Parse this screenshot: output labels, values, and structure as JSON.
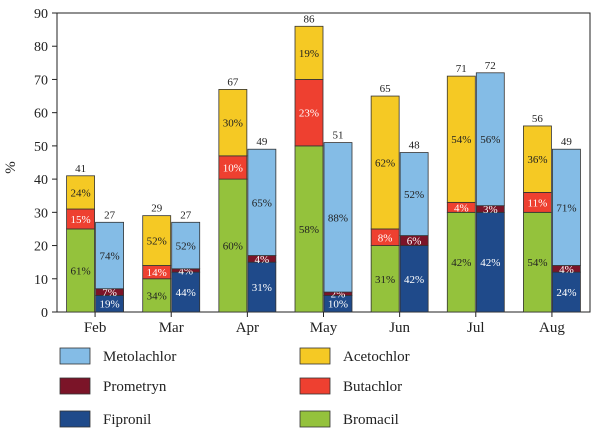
{
  "chart_data": {
    "type": "bar",
    "ylabel": "%",
    "ylim": [
      0,
      90
    ],
    "yticks": [
      0,
      10,
      20,
      30,
      40,
      50,
      60,
      70,
      80,
      90
    ],
    "categories": [
      "Feb",
      "Mar",
      "Apr",
      "May",
      "Jun",
      "Jul",
      "Aug"
    ],
    "stacks": [
      {
        "bar": "left",
        "series": [
          {
            "name": "Bromacil",
            "color": "#94c23c",
            "values": [
              25,
              10,
              40,
              50,
              20,
              30,
              30
            ],
            "labels": [
              "61%",
              "34%",
              "60%",
              "58%",
              "31%",
              "42%",
              "54%"
            ]
          },
          {
            "name": "Butachlor",
            "color": "#ee4030",
            "values": [
              6,
              4,
              7,
              20,
              5,
              3,
              6
            ],
            "labels": [
              "15%",
              "14%",
              "10%",
              "23%",
              "8%",
              "4%",
              "11%"
            ]
          },
          {
            "name": "Acetochlor",
            "color": "#f5c924",
            "values": [
              10,
              15,
              20,
              16,
              40,
              38,
              20
            ],
            "labels": [
              "24%",
              "52%",
              "30%",
              "19%",
              "62%",
              "54%",
              "36%"
            ]
          }
        ],
        "totals": [
          41,
          29,
          67,
          86,
          65,
          71,
          56
        ]
      },
      {
        "bar": "right",
        "series": [
          {
            "name": "Fipronil",
            "color": "#1f4a8a",
            "values": [
              5,
              12,
              15,
              5,
              20,
              30,
              12
            ],
            "labels": [
              "19%",
              "44%",
              "31%",
              "10%",
              "42%",
              "42%",
              "24%"
            ]
          },
          {
            "name": "Prometryn",
            "color": "#7b1428",
            "values": [
              2,
              1,
              2,
              1,
              3,
              2,
              2
            ],
            "labels": [
              "7%",
              "4%",
              "4%",
              "2%",
              "6%",
              "3%",
              "4%"
            ]
          },
          {
            "name": "Metolachlor",
            "color": "#84bce6",
            "values": [
              20,
              14,
              32,
              45,
              25,
              40,
              35
            ],
            "labels": [
              "74%",
              "52%",
              "65%",
              "88%",
              "52%",
              "56%",
              "71%"
            ]
          }
        ],
        "totals": [
          27,
          27,
          49,
          51,
          48,
          72,
          49
        ]
      }
    ],
    "legend": [
      {
        "name": "Metolachlor",
        "color": "#84bce6"
      },
      {
        "name": "Acetochlor",
        "color": "#f5c924"
      },
      {
        "name": "Prometryn",
        "color": "#7b1428"
      },
      {
        "name": "Butachlor",
        "color": "#ee4030"
      },
      {
        "name": "Fipronil",
        "color": "#1f4a8a"
      },
      {
        "name": "Bromacil",
        "color": "#94c23c"
      }
    ],
    "legend_placement": "bottom",
    "grid": false
  }
}
